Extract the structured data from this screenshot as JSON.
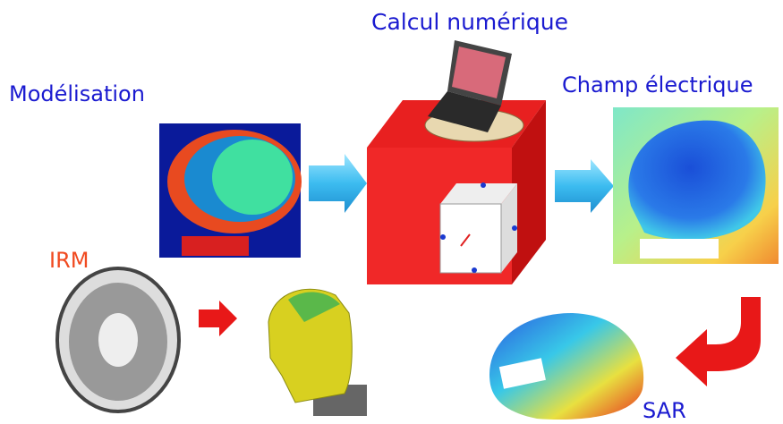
{
  "nodes": [
    {
      "label": "Calcul numérique"
    },
    {
      "label": "Modélisation"
    },
    {
      "label": "Champ électrique"
    },
    {
      "label": "IRM"
    },
    {
      "label": "SAR"
    }
  ]
}
